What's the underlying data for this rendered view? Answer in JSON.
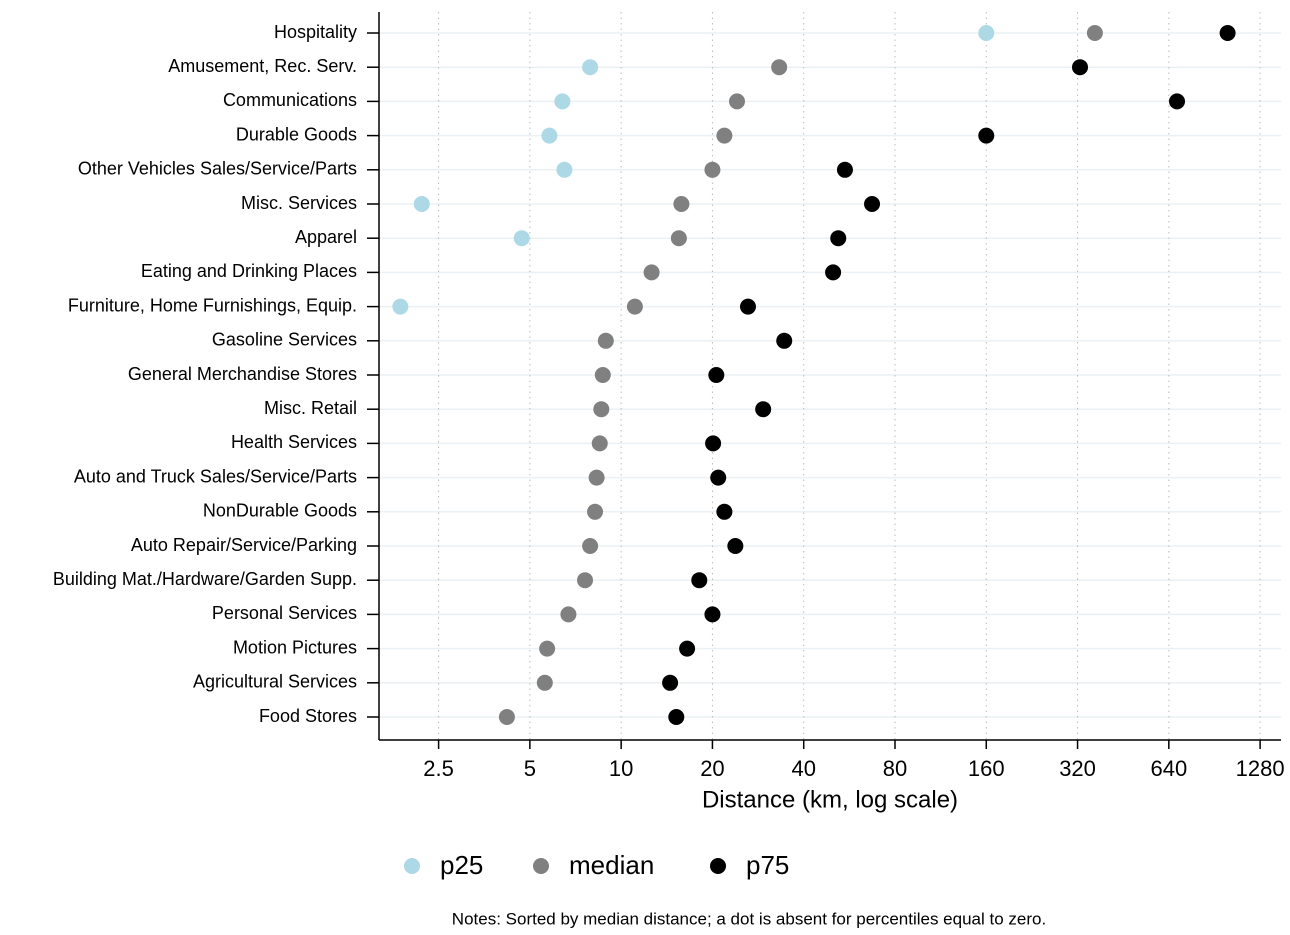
{
  "chart_data": {
    "type": "dot",
    "xlabel": "Distance (km, log scale)",
    "note": "Notes: Sorted by median distance; a dot is absent for percentiles equal to zero.",
    "xscale": "log",
    "xlim": [
      1.59,
      1500
    ],
    "xticks": [
      2.5,
      5,
      10,
      20,
      40,
      80,
      160,
      320,
      640,
      1280
    ],
    "grid": true,
    "legend": "bottom",
    "categories": [
      "Hospitality",
      "Amusement, Rec. Serv.",
      "Communications",
      "Durable Goods",
      "Other Vehicles Sales/Service/Parts",
      "Misc. Services",
      "Apparel",
      "Eating and Drinking Places",
      "Furniture, Home Furnishings, Equip.",
      "Gasoline Services",
      "General Merchandise Stores",
      "Misc. Retail",
      "Health Services",
      "Auto and Truck Sales/Service/Parts",
      "NonDurable Goods",
      "Auto Repair/Service/Parking",
      "Building Mat./Hardware/Garden Supp.",
      "Personal Services",
      "Motion Pictures",
      "Agricultural Services",
      "Food Stores"
    ],
    "series": [
      {
        "name": "p25",
        "color": "#add8e6",
        "values": [
          160,
          7.9,
          6.4,
          5.8,
          6.5,
          2.2,
          4.7,
          null,
          1.87,
          null,
          null,
          null,
          null,
          null,
          null,
          null,
          null,
          null,
          null,
          null,
          null
        ]
      },
      {
        "name": "median",
        "color": "#808080",
        "values": [
          365,
          33.2,
          24.1,
          21.9,
          20,
          15.8,
          15.5,
          12.6,
          11.1,
          8.9,
          8.7,
          8.6,
          8.5,
          8.3,
          8.2,
          7.9,
          7.6,
          6.7,
          5.7,
          5.6,
          4.2
        ]
      },
      {
        "name": "p75",
        "color": "#000000",
        "values": [
          1000,
          326,
          681,
          160,
          54.7,
          67.2,
          52,
          50,
          26.2,
          34.5,
          20.6,
          29.4,
          20.1,
          20.9,
          21.9,
          23.8,
          18.1,
          20,
          16.5,
          14.5,
          15.2
        ]
      }
    ]
  }
}
